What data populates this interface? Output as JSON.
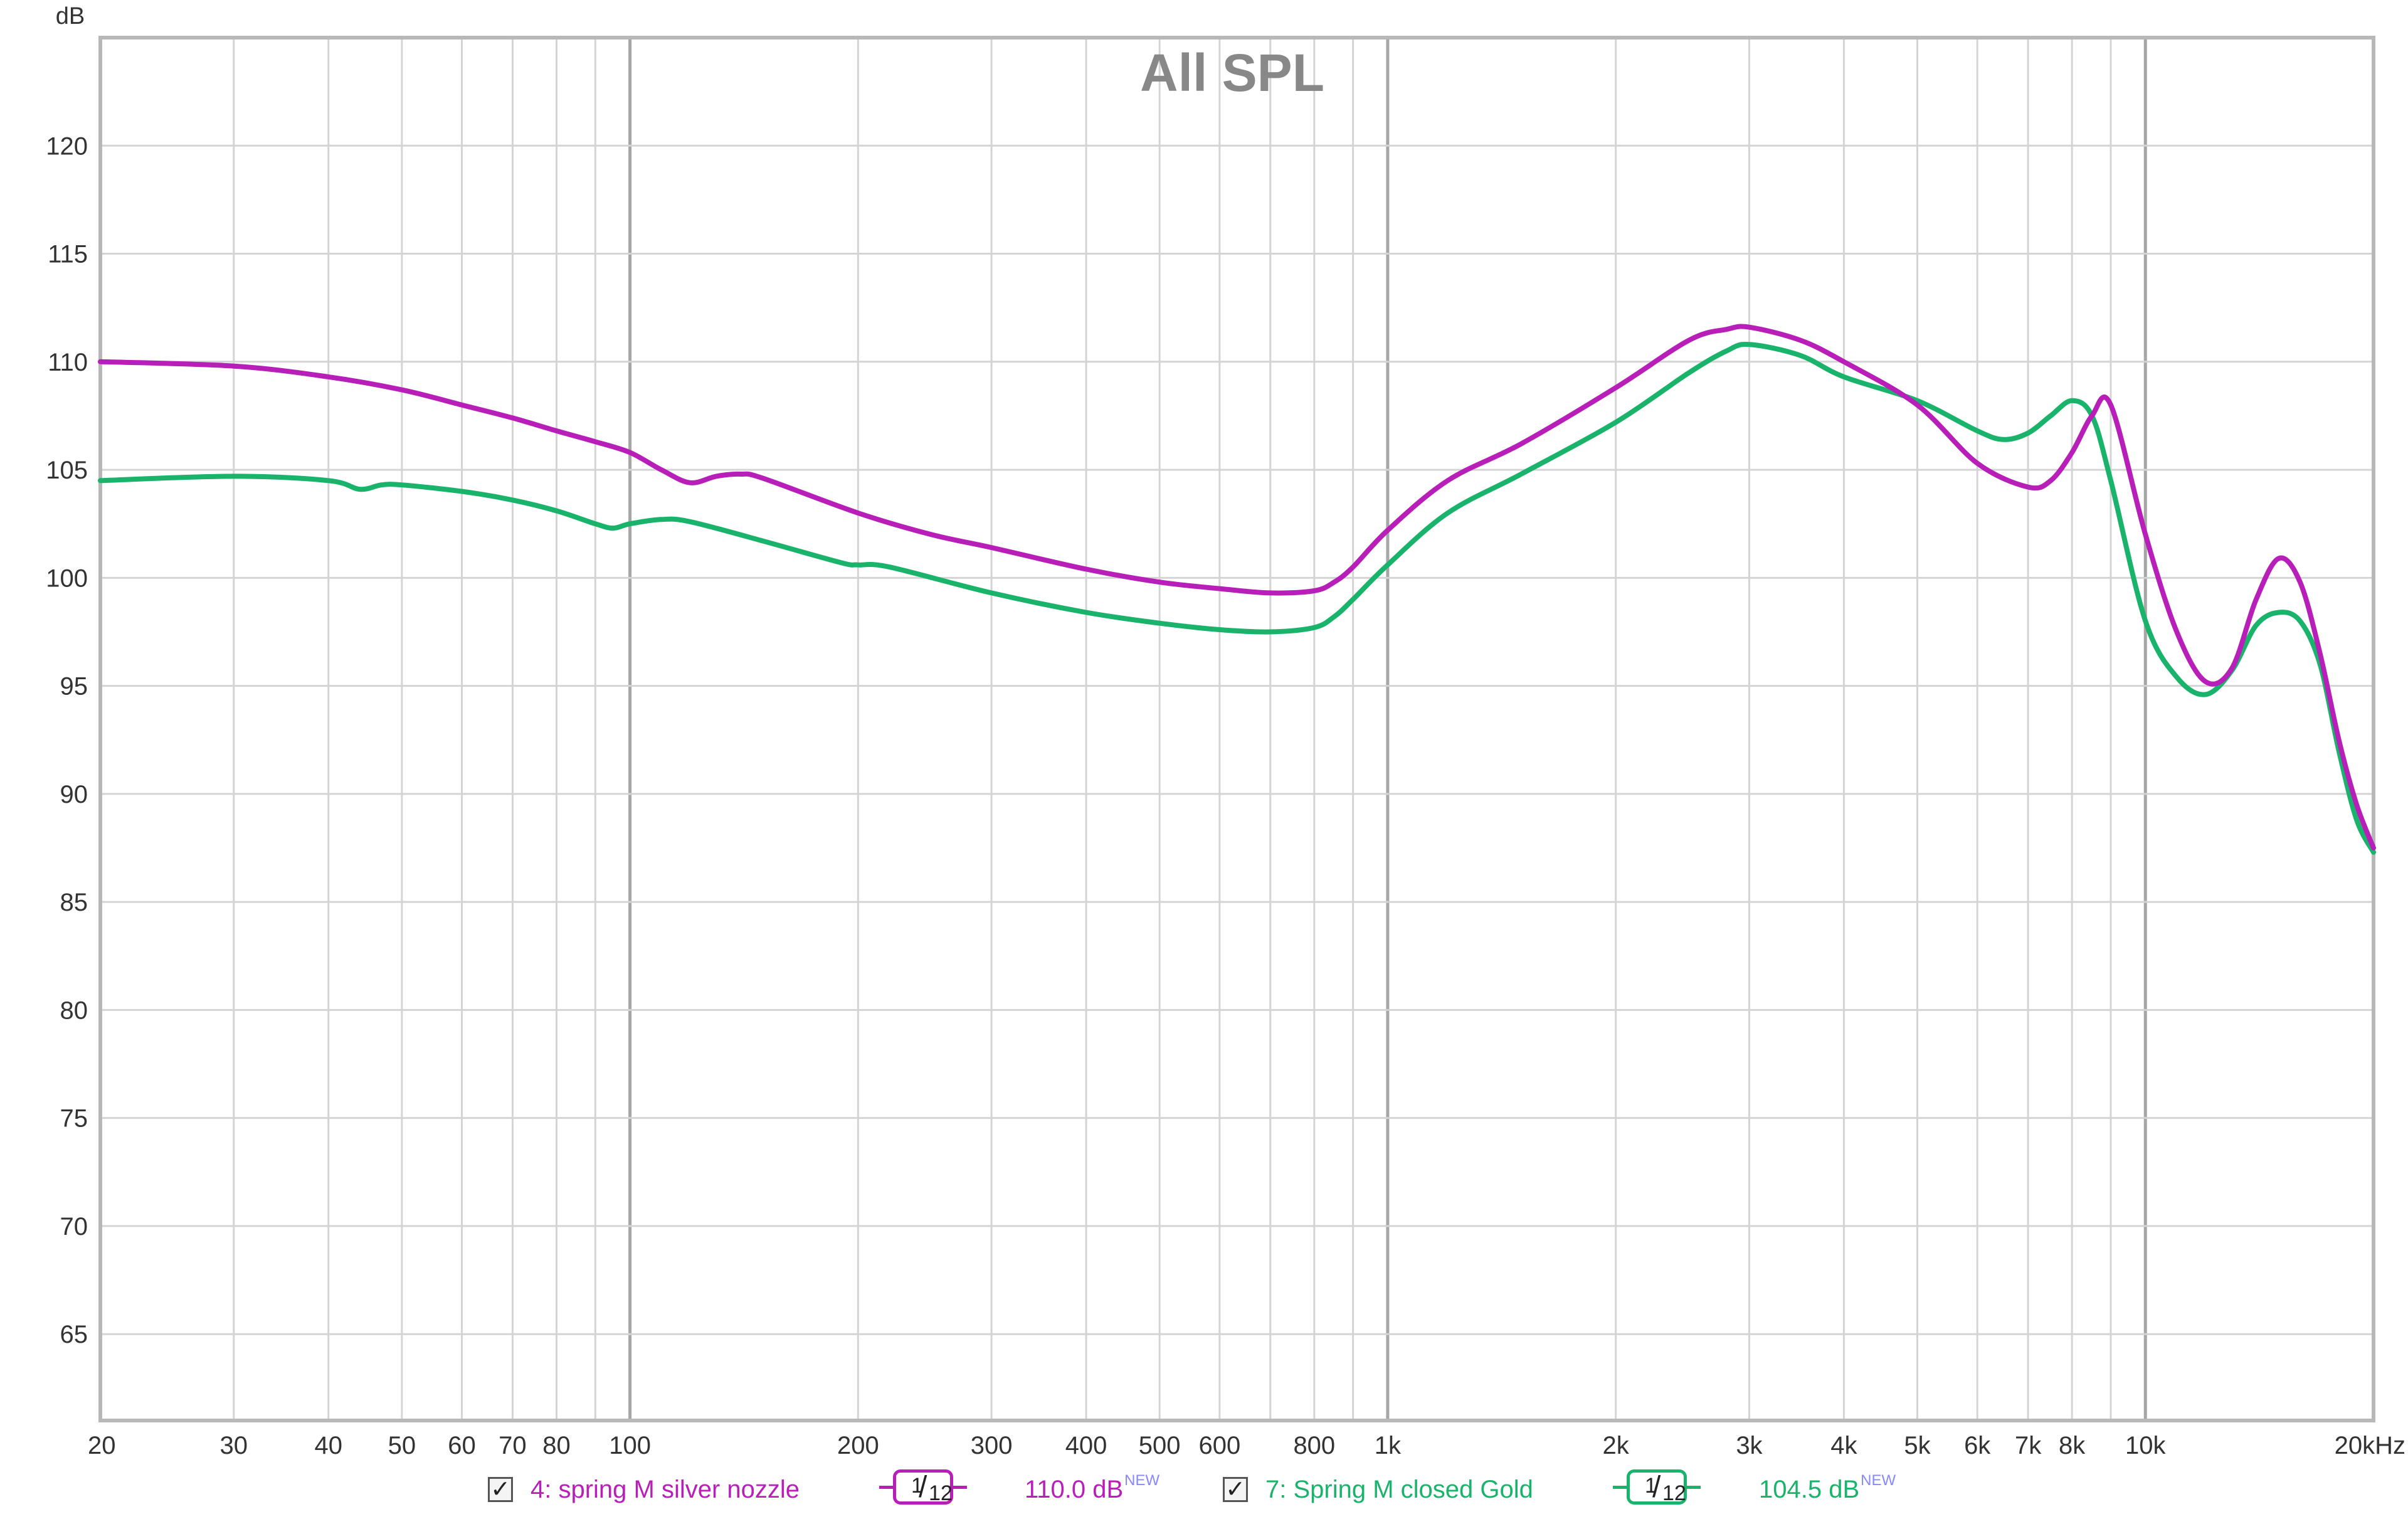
{
  "chart_data": {
    "type": "line",
    "title": "All SPL",
    "ylabel": "dB",
    "xscale": "log",
    "xlim": [
      20,
      20000
    ],
    "ylim": [
      61,
      125
    ],
    "grid": true,
    "x_ticks": [
      {
        "value": 20,
        "label": "20"
      },
      {
        "value": 30,
        "label": "30"
      },
      {
        "value": 40,
        "label": "40"
      },
      {
        "value": 50,
        "label": "50"
      },
      {
        "value": 60,
        "label": "60"
      },
      {
        "value": 70,
        "label": "70"
      },
      {
        "value": 80,
        "label": "80"
      },
      {
        "value": 100,
        "label": "100"
      },
      {
        "value": 200,
        "label": "200"
      },
      {
        "value": 300,
        "label": "300"
      },
      {
        "value": 400,
        "label": "400"
      },
      {
        "value": 500,
        "label": "500"
      },
      {
        "value": 600,
        "label": "600"
      },
      {
        "value": 800,
        "label": "800"
      },
      {
        "value": 1000,
        "label": "1k"
      },
      {
        "value": 2000,
        "label": "2k"
      },
      {
        "value": 3000,
        "label": "3k"
      },
      {
        "value": 4000,
        "label": "4k"
      },
      {
        "value": 5000,
        "label": "5k"
      },
      {
        "value": 6000,
        "label": "6k"
      },
      {
        "value": 7000,
        "label": "7k"
      },
      {
        "value": 8000,
        "label": "8k"
      },
      {
        "value": 10000,
        "label": "10k"
      },
      {
        "value": 20000,
        "label": "20kHz"
      }
    ],
    "y_ticks": [
      65,
      70,
      75,
      80,
      85,
      90,
      95,
      100,
      105,
      110,
      115,
      120
    ],
    "series": [
      {
        "name": "4: spring M silver nozzle",
        "color": "#b81fb8",
        "x": [
          20,
          30,
          40,
          50,
          60,
          70,
          80,
          90,
          100,
          110,
          120,
          130,
          140,
          150,
          200,
          250,
          300,
          400,
          500,
          600,
          700,
          800,
          850,
          900,
          1000,
          1200,
          1500,
          2000,
          2500,
          2800,
          3000,
          3500,
          4000,
          5000,
          6000,
          7000,
          7500,
          8000,
          8500,
          9000,
          10000,
          11000,
          12000,
          13000,
          14000,
          15000,
          16000,
          17000,
          18000,
          19000,
          20000
        ],
        "y": [
          110.0,
          109.8,
          109.3,
          108.7,
          108.0,
          107.4,
          106.8,
          106.3,
          105.8,
          105.0,
          104.4,
          104.7,
          104.8,
          104.6,
          103.0,
          102.0,
          101.4,
          100.4,
          99.8,
          99.5,
          99.3,
          99.4,
          99.8,
          100.5,
          102.2,
          104.5,
          106.2,
          108.8,
          111.0,
          111.5,
          111.6,
          111.0,
          110.0,
          108.0,
          105.3,
          104.2,
          104.5,
          105.8,
          107.5,
          108.0,
          102.0,
          97.5,
          95.2,
          95.8,
          99.0,
          100.9,
          99.8,
          96.5,
          92.5,
          89.5,
          87.5
        ]
      },
      {
        "name": "7: Spring M closed Gold",
        "color": "#1ab36b",
        "x": [
          20,
          30,
          40,
          44,
          47,
          50,
          60,
          70,
          80,
          90,
          95,
          100,
          110,
          120,
          150,
          190,
          200,
          220,
          300,
          400,
          500,
          600,
          700,
          800,
          850,
          900,
          1000,
          1200,
          1500,
          2000,
          2500,
          2800,
          3000,
          3500,
          4000,
          5000,
          6000,
          6500,
          7000,
          7500,
          8000,
          8500,
          9000,
          10000,
          11000,
          12000,
          13000,
          14000,
          15000,
          16000,
          17000,
          18000,
          19000,
          20000
        ],
        "y": [
          104.5,
          104.7,
          104.5,
          104.1,
          104.3,
          104.3,
          104.0,
          103.6,
          103.1,
          102.5,
          102.3,
          102.5,
          102.7,
          102.6,
          101.7,
          100.7,
          100.6,
          100.5,
          99.3,
          98.4,
          97.9,
          97.6,
          97.5,
          97.7,
          98.2,
          99.0,
          100.6,
          103.0,
          104.8,
          107.2,
          109.5,
          110.5,
          110.8,
          110.3,
          109.3,
          108.2,
          106.8,
          106.4,
          106.7,
          107.5,
          108.2,
          107.5,
          104.5,
          98.0,
          95.4,
          94.6,
          95.7,
          97.8,
          98.4,
          98.0,
          96.0,
          92.0,
          88.8,
          87.3
        ]
      }
    ]
  },
  "legend": {
    "items": [
      {
        "name": "4: spring M silver nozzle",
        "checked": true,
        "check_glyph": "✓",
        "color": "#b81fb8",
        "smoothing": {
          "num": "1",
          "slash": "/",
          "den": "12"
        },
        "level": "110.0 dB",
        "badge": "NEW"
      },
      {
        "name": "7: Spring M closed Gold",
        "checked": true,
        "check_glyph": "✓",
        "color": "#1ab36b",
        "smoothing": {
          "num": "1",
          "slash": "/",
          "den": "12"
        },
        "level": "104.5 dB",
        "badge": "NEW"
      }
    ]
  }
}
